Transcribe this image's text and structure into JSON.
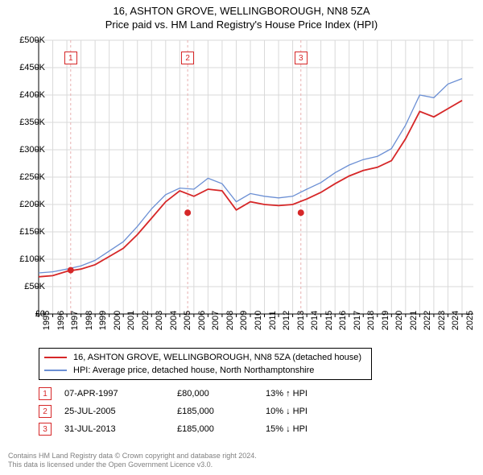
{
  "title_line1": "16, ASHTON GROVE, WELLINGBOROUGH, NN8 5ZA",
  "title_line2": "Price paid vs. HM Land Registry's House Price Index (HPI)",
  "chart": {
    "type": "line",
    "background_color": "#ffffff",
    "grid_color": "#d9d9d9",
    "axis_color": "#000000",
    "tick_fontsize": 11,
    "x_years": [
      1995,
      1996,
      1997,
      1998,
      1999,
      2000,
      2001,
      2002,
      2003,
      2004,
      2005,
      2006,
      2007,
      2008,
      2009,
      2010,
      2011,
      2012,
      2013,
      2014,
      2015,
      2016,
      2017,
      2018,
      2019,
      2020,
      2021,
      2022,
      2023,
      2024,
      2025
    ],
    "y_ticks": [
      0,
      50000,
      100000,
      150000,
      200000,
      250000,
      300000,
      350000,
      400000,
      450000,
      500000
    ],
    "y_tick_labels": [
      "£0",
      "£50K",
      "£100K",
      "£150K",
      "£200K",
      "£250K",
      "£300K",
      "£350K",
      "£400K",
      "£450K",
      "£500K"
    ],
    "ylim": [
      0,
      500000
    ],
    "xlim": [
      1995,
      2025.8
    ],
    "series": [
      {
        "name": "16, ASHTON GROVE, WELLINGBOROUGH, NN8 5ZA (detached house)",
        "color": "#d62728",
        "line_width": 1.8,
        "x": [
          1995,
          1996,
          1997,
          1998,
          1999,
          2000,
          2001,
          2002,
          2003,
          2004,
          2005,
          2006,
          2007,
          2008,
          2009,
          2010,
          2011,
          2012,
          2013,
          2014,
          2015,
          2016,
          2017,
          2018,
          2019,
          2020,
          2021,
          2022,
          2023,
          2024,
          2025
        ],
        "y": [
          68000,
          70000,
          78000,
          82000,
          90000,
          105000,
          120000,
          145000,
          175000,
          205000,
          225000,
          215000,
          228000,
          225000,
          190000,
          205000,
          200000,
          198000,
          200000,
          210000,
          222000,
          238000,
          252000,
          262000,
          268000,
          280000,
          320000,
          370000,
          360000,
          375000,
          390000
        ]
      },
      {
        "name": "HPI: Average price, detached house, North Northamptonshire",
        "color": "#6b8fd4",
        "line_width": 1.3,
        "x": [
          1995,
          1996,
          1997,
          1998,
          1999,
          2000,
          2001,
          2002,
          2003,
          2004,
          2005,
          2006,
          2007,
          2008,
          2009,
          2010,
          2011,
          2012,
          2013,
          2014,
          2015,
          2016,
          2017,
          2018,
          2019,
          2020,
          2021,
          2022,
          2023,
          2024,
          2025
        ],
        "y": [
          75000,
          77000,
          82000,
          88000,
          98000,
          115000,
          132000,
          160000,
          192000,
          218000,
          230000,
          228000,
          248000,
          238000,
          205000,
          220000,
          215000,
          212000,
          215000,
          228000,
          240000,
          258000,
          272000,
          282000,
          288000,
          302000,
          345000,
          400000,
          395000,
          420000,
          430000
        ]
      }
    ],
    "sale_markers": [
      {
        "n": "1",
        "x": 1997.27,
        "y": 80000,
        "color": "#d62728"
      },
      {
        "n": "2",
        "x": 2005.56,
        "y": 185000,
        "color": "#d62728"
      },
      {
        "n": "3",
        "x": 2013.58,
        "y": 185000,
        "color": "#d62728"
      }
    ],
    "marker_guide_color": "#e8b0b0",
    "marker_label_top_offset": 14
  },
  "legend": {
    "border_color": "#000000",
    "items": [
      {
        "color": "#d62728",
        "label": "16, ASHTON GROVE, WELLINGBOROUGH, NN8 5ZA (detached house)"
      },
      {
        "color": "#6b8fd4",
        "label": "HPI: Average price, detached house, North Northamptonshire"
      }
    ]
  },
  "events": [
    {
      "n": "1",
      "color": "#d62728",
      "date": "07-APR-1997",
      "price": "£80,000",
      "delta": "13% ↑ HPI"
    },
    {
      "n": "2",
      "color": "#d62728",
      "date": "25-JUL-2005",
      "price": "£185,000",
      "delta": "10% ↓ HPI"
    },
    {
      "n": "3",
      "color": "#d62728",
      "date": "31-JUL-2013",
      "price": "£185,000",
      "delta": "15% ↓ HPI"
    }
  ],
  "footer": {
    "line1": "Contains HM Land Registry data © Crown copyright and database right 2024.",
    "line2": "This data is licensed under the Open Government Licence v3.0.",
    "color": "#808080"
  }
}
